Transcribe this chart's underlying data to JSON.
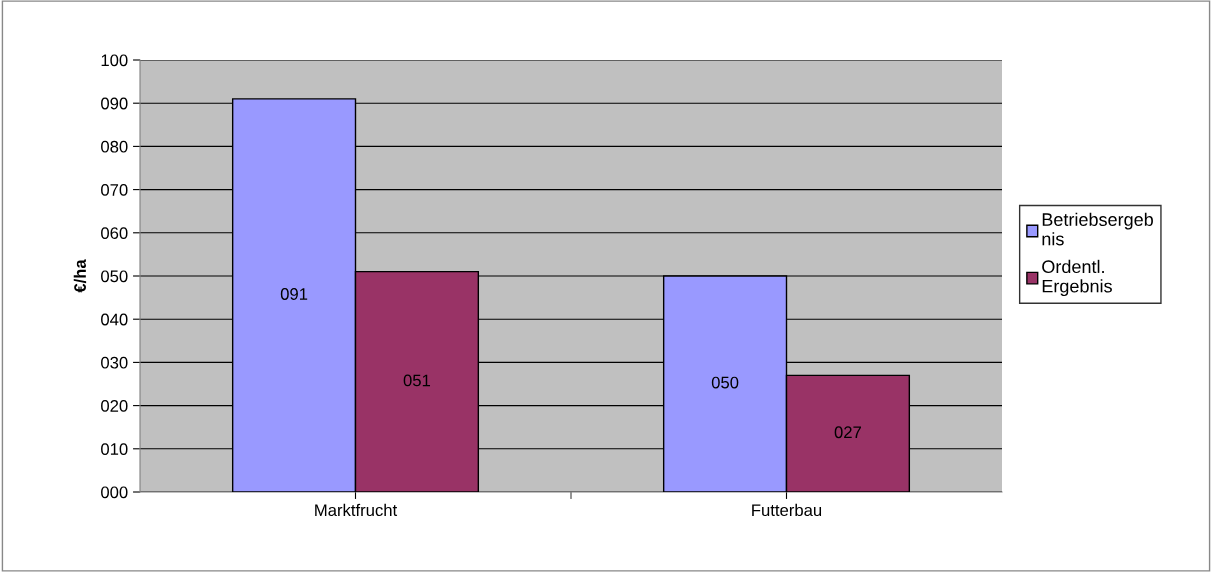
{
  "chart_data": {
    "type": "bar",
    "ylabel": "€/ha",
    "categories": [
      "Marktfrucht",
      "Futterbau"
    ],
    "series": [
      {
        "name": "Betriebsergeb\nnis",
        "color": "#9999ff",
        "values": [
          91,
          50
        ],
        "value_labels": [
          "091",
          "050"
        ]
      },
      {
        "name": "Ordentl.\nErgebnis",
        "color": "#993366",
        "values": [
          51,
          27
        ],
        "value_labels": [
          "051",
          "027"
        ]
      }
    ],
    "ylim": [
      0,
      100
    ],
    "yticks": [
      {
        "value": 0,
        "label": "000"
      },
      {
        "value": 10,
        "label": "010"
      },
      {
        "value": 20,
        "label": "020"
      },
      {
        "value": 30,
        "label": "030"
      },
      {
        "value": 40,
        "label": "040"
      },
      {
        "value": 50,
        "label": "050"
      },
      {
        "value": 60,
        "label": "060"
      },
      {
        "value": 70,
        "label": "070"
      },
      {
        "value": 80,
        "label": "080"
      },
      {
        "value": 90,
        "label": "090"
      },
      {
        "value": 100,
        "label": "100"
      }
    ],
    "grid": "y",
    "legend": "right"
  }
}
